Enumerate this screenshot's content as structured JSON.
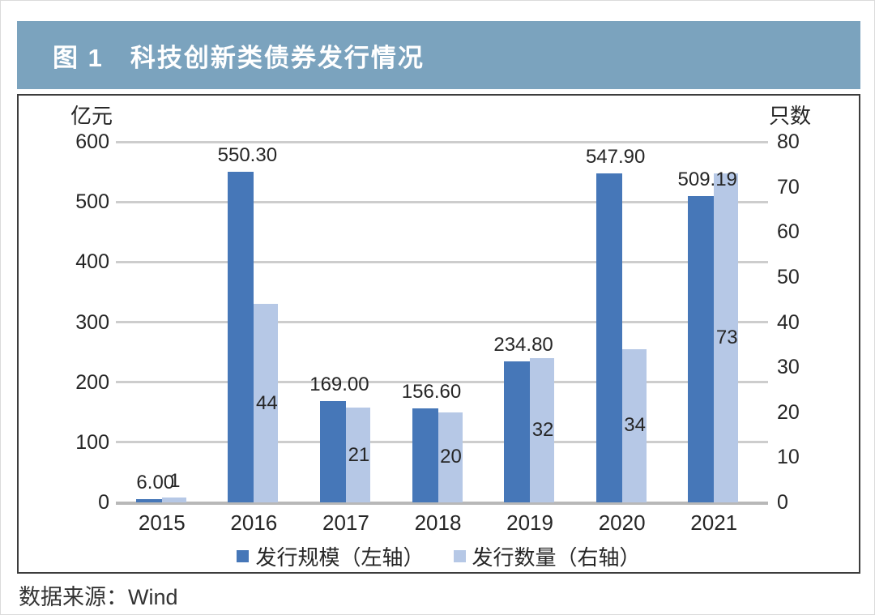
{
  "figure": {
    "title": "图 1　科技创新类债券发行情况",
    "source": "数据来源：Wind"
  },
  "colors": {
    "header_bg": "#7BA3BE",
    "title_text": "#FFFFFF",
    "scale_bar": "#4677B8",
    "count_bar": "#B6C8E6",
    "gridline": "#CDCDCD",
    "baseline": "#B8B8B8",
    "chart_border": "#3D3D3D",
    "text": "#262626"
  },
  "chart_data": {
    "type": "bar",
    "title": "图 1　科技创新类债券发行情况",
    "dual_axis": true,
    "grid": true,
    "legend_position": "bottom",
    "categories": [
      "2015",
      "2016",
      "2017",
      "2018",
      "2019",
      "2020",
      "2021"
    ],
    "series": [
      {
        "name": "发行规模（左轴）",
        "axis": "left",
        "values": [
          6.0,
          550.3,
          169.0,
          156.6,
          234.8,
          547.9,
          509.19
        ],
        "labels": [
          "6.00",
          "550.30",
          "169.00",
          "156.60",
          "234.80",
          "547.90",
          "509.19"
        ]
      },
      {
        "name": "发行数量（右轴）",
        "axis": "right",
        "values": [
          1,
          44,
          21,
          20,
          32,
          34,
          73
        ],
        "labels": [
          "1",
          "44",
          "21",
          "20",
          "32",
          "34",
          "73"
        ]
      }
    ],
    "left_axis": {
      "label": "亿元",
      "min": 0,
      "max": 600,
      "step": 100,
      "ticks": [
        "600",
        "500",
        "400",
        "300",
        "200",
        "100",
        "0"
      ]
    },
    "right_axis": {
      "label": "只数",
      "min": 0,
      "max": 80,
      "step": 10,
      "ticks": [
        "80",
        "70",
        "60",
        "50",
        "40",
        "30",
        "20",
        "10",
        "0"
      ]
    }
  }
}
